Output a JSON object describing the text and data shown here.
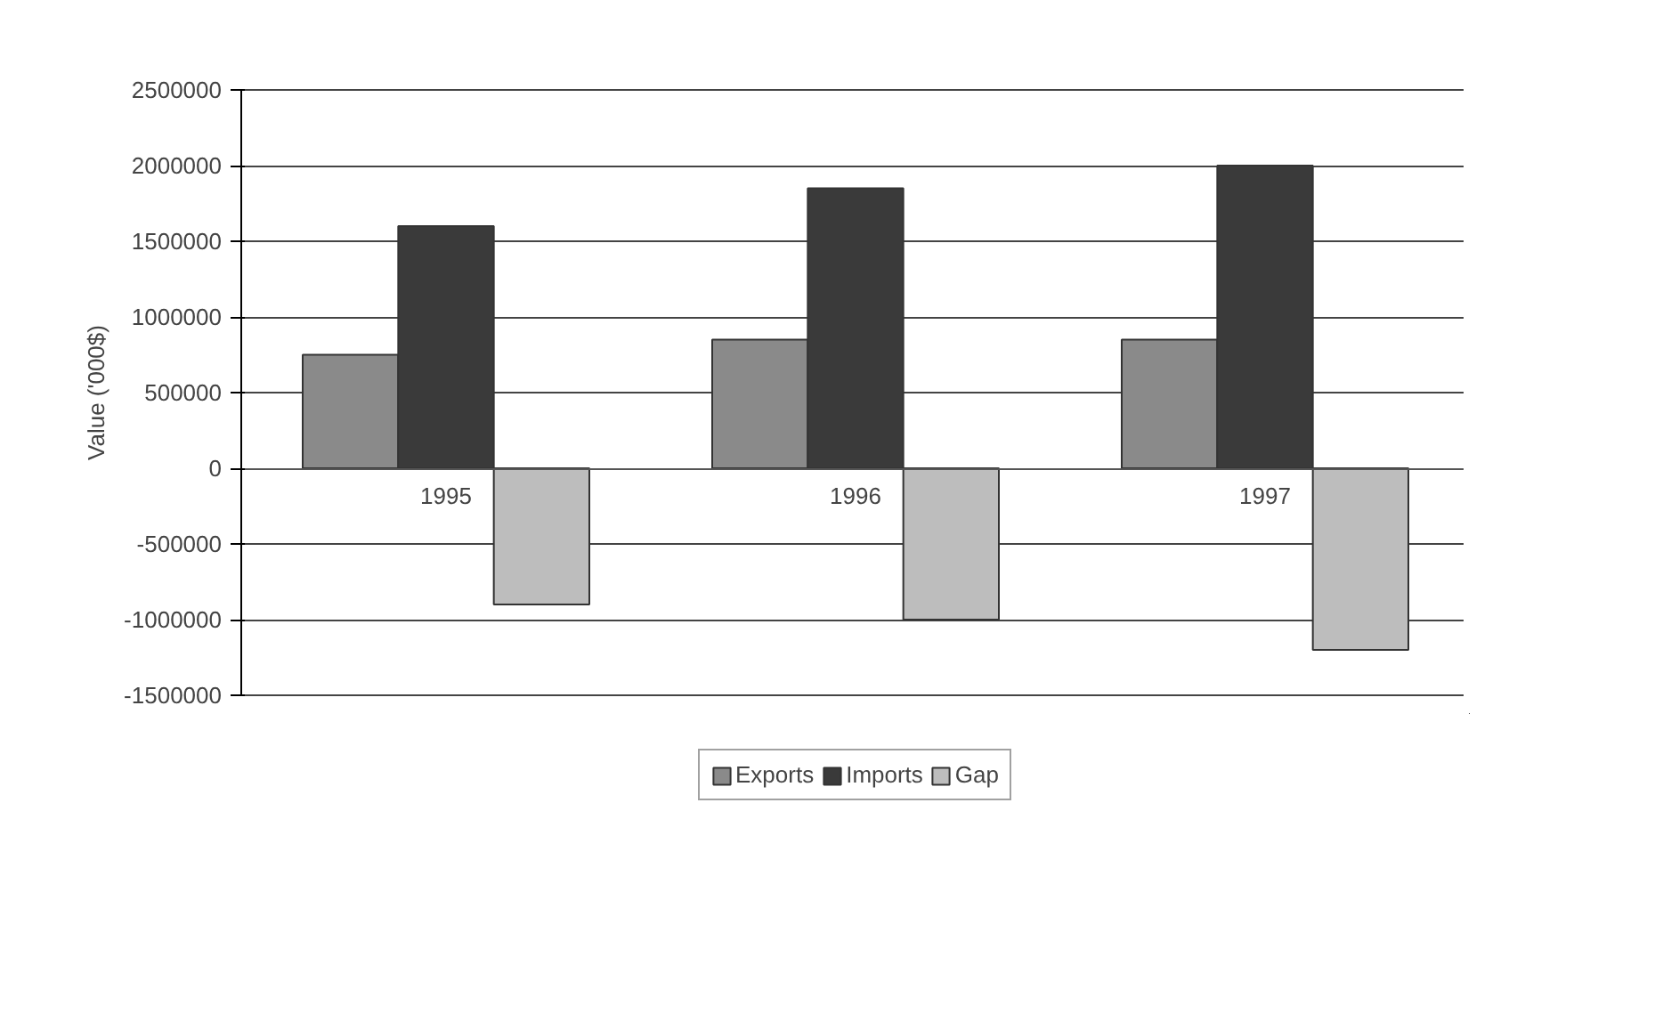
{
  "chart_data": {
    "type": "bar",
    "ylabel": "Value ('000$)",
    "categories": [
      "1995",
      "1996",
      "1997"
    ],
    "series": [
      {
        "name": "Exports",
        "color": "#8a8a8a",
        "values": [
          750000,
          850000,
          850000
        ]
      },
      {
        "name": "Imports",
        "color": "#3a3a3a",
        "values": [
          1600000,
          1850000,
          2000000
        ]
      },
      {
        "name": "Gap",
        "color": "#bdbdbd",
        "values": [
          -900000,
          -1000000,
          -1200000
        ]
      }
    ],
    "ylim": [
      -1500000,
      2500000
    ],
    "yticks": [
      -1500000,
      -1000000,
      -500000,
      0,
      500000,
      1000000,
      1500000,
      2000000,
      2500000
    ],
    "grid": "y",
    "legend": "bottom"
  }
}
